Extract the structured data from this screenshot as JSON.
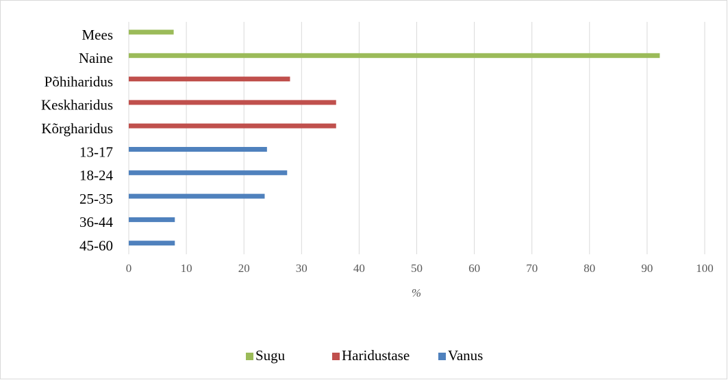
{
  "chart_data": {
    "type": "bar",
    "orientation": "horizontal",
    "categories": [
      "Mees",
      "Naine",
      "Põhiharidus",
      "Keskharidus",
      "Kõrgharidus",
      "13-17",
      "18-24",
      "25-35",
      "36-44",
      "45-60"
    ],
    "series": [
      {
        "name": "Sugu",
        "color": "#9bbb59",
        "values": [
          7.8,
          92.2,
          null,
          null,
          null,
          null,
          null,
          null,
          null,
          null
        ]
      },
      {
        "name": "Haridustase",
        "color": "#c0504d",
        "values": [
          null,
          null,
          28,
          36,
          36,
          null,
          null,
          null,
          null,
          null
        ]
      },
      {
        "name": "Vanus",
        "color": "#4f81bd",
        "values": [
          null,
          null,
          null,
          null,
          null,
          24,
          27.5,
          23.6,
          8,
          8
        ]
      }
    ],
    "xlabel": "%",
    "xlim": [
      0,
      100
    ],
    "xticks": [
      0,
      10,
      20,
      30,
      40,
      50,
      60,
      70,
      80,
      90,
      100
    ],
    "grid": true,
    "legend": "bottom"
  }
}
